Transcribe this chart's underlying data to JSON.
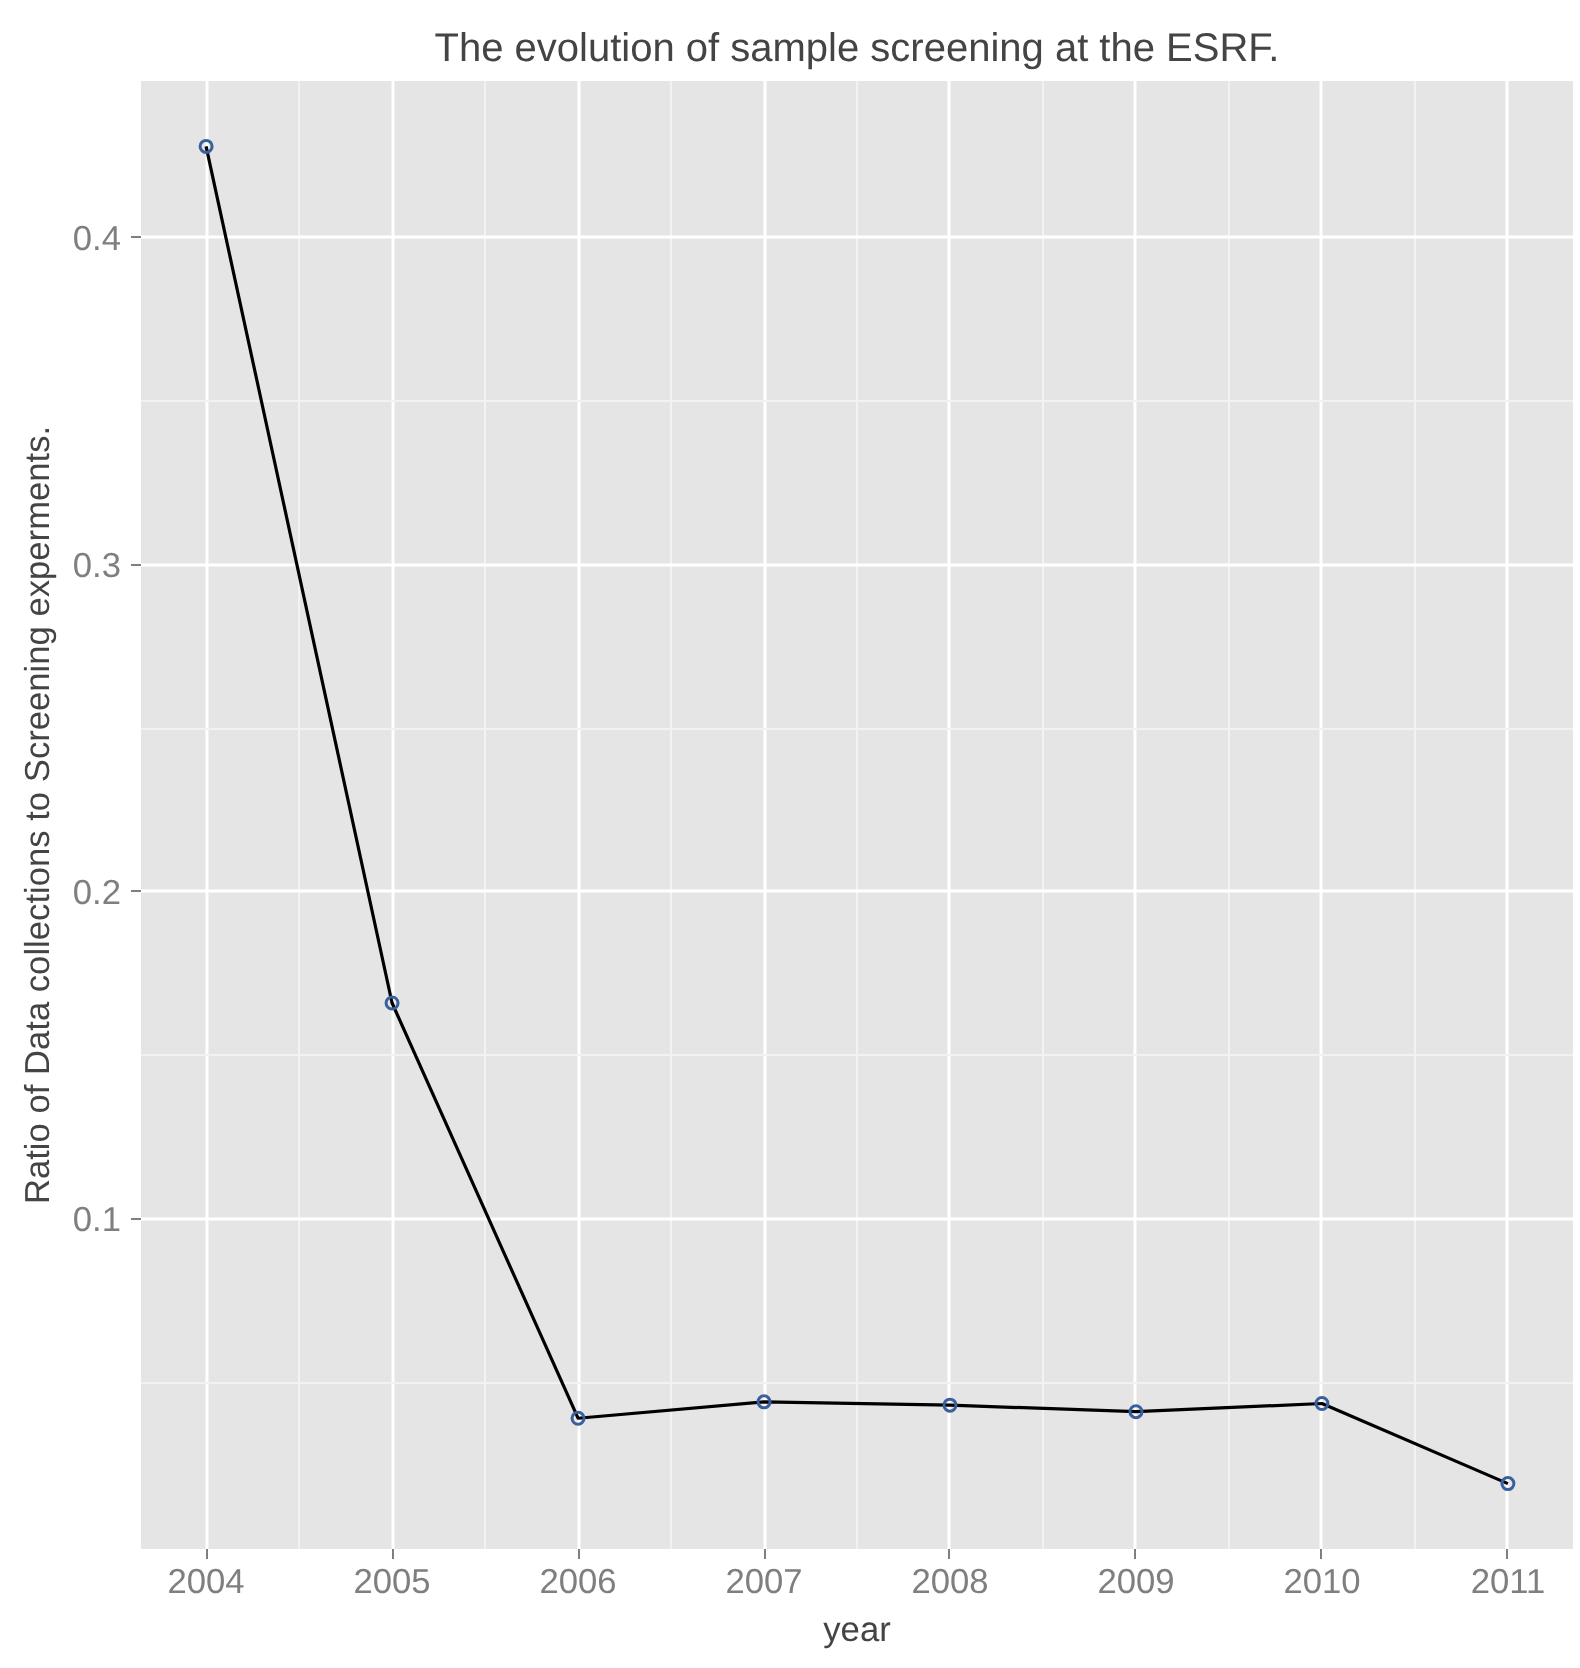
{
  "chart_data": {
    "type": "line",
    "title": "The evolution of sample screening at the ESRF.",
    "xlabel": "year",
    "ylabel": "Ratio of Data collections to Screening experments.",
    "x": [
      2004,
      2005,
      2006,
      2007,
      2008,
      2009,
      2010,
      2011
    ],
    "series": [
      {
        "color": "#000000",
        "values": [
          0.428,
          0.166,
          0.039,
          0.044,
          0.043,
          0.041,
          0.0435,
          0.019
        ]
      }
    ],
    "colors": [
      "#3a5f9e",
      "#3a5f9e",
      "#3a5f9e",
      "#3a5f9e",
      "#3a5f9e",
      "#3a5f9e",
      "#3a5f9e",
      "#3a5f9e"
    ],
    "xlim": [
      2003.65,
      2011.35
    ],
    "ylim": [
      -0.001,
      0.448
    ],
    "xticks": [
      2004,
      2005,
      2006,
      2007,
      2008,
      2009,
      2010,
      2011
    ],
    "yticks": [
      0.1,
      0.2,
      0.3,
      0.4
    ],
    "grid": true,
    "marker": "circle",
    "line_style": "solid"
  }
}
